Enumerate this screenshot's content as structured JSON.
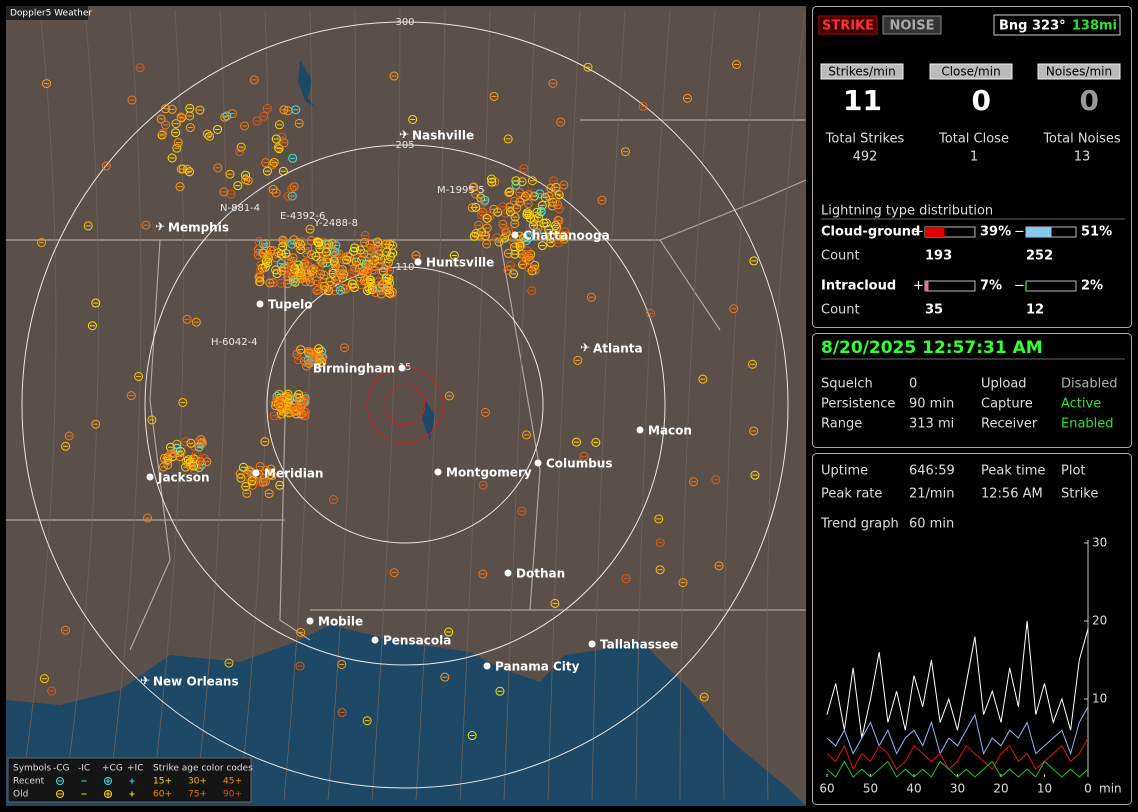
{
  "map": {
    "brand": "Doppler5 Weather",
    "rings": [
      "300",
      "205",
      "110",
      "15"
    ],
    "cities": [
      "Nashville",
      "Memphis",
      "Chattanooga",
      "Huntsville",
      "Tupelo",
      "Atlanta",
      "Birmingham",
      "Macon",
      "Columbus",
      "Montgomery",
      "Jackson",
      "Meridian",
      "Dothan",
      "Mobile",
      "Pensacola",
      "Tallahassee",
      "Panama City",
      "New Orleans"
    ],
    "storms": [
      "N-881-4",
      "E-4392-6",
      "Y-2488-8",
      "M-1995-5",
      "H-6042-4"
    ],
    "legend": {
      "headers": [
        "Symbols",
        "-CG",
        "-IC",
        "+CG",
        "+IC",
        "Strike age color codes"
      ],
      "rows": [
        {
          "label": "Recent",
          "ages": [
            "15+",
            "30+",
            "45+"
          ]
        },
        {
          "label": "Old",
          "ages": [
            "60+",
            "75+",
            "90+"
          ]
        }
      ]
    }
  },
  "header": {
    "strike_button": "STRIKE",
    "noise_button": "NOISE",
    "bearing": "Bng 323°",
    "distance": "138mi"
  },
  "rates": [
    {
      "label": "Strikes/min",
      "value": 11,
      "total_label": "Total Strikes",
      "total": 492
    },
    {
      "label": "Close/min",
      "value": 0,
      "total_label": "Total Close",
      "total": 1
    },
    {
      "label": "Noises/min",
      "value": 0,
      "total_label": "Total Noises",
      "total": 13
    }
  ],
  "distribution": {
    "title": "Lightning type distribution",
    "count_label": "Count",
    "rows": [
      {
        "label": "Cloud-ground",
        "plus": {
          "value": 39,
          "label": "39%",
          "color": "#e00000"
        },
        "minus": {
          "value": 51,
          "label": "51%",
          "color": "#88c8f0"
        },
        "plus_count": 193,
        "minus_count": 252
      },
      {
        "label": "Intracloud",
        "plus": {
          "value": 7,
          "label": "7%",
          "color": "#e070a0"
        },
        "minus": {
          "value": 2,
          "label": "2%",
          "color": "#20a040"
        },
        "plus_count": 35,
        "minus_count": 12
      }
    ]
  },
  "clock": "8/20/2025 12:57:31 AM",
  "settings": [
    {
      "cells": [
        "Squelch",
        "0",
        "Upload",
        "Disabled"
      ],
      "status_color": "#b0b0b0"
    },
    {
      "cells": [
        "Persistence",
        "90 min",
        "Capture",
        "Active"
      ],
      "status_color": "#30e030"
    },
    {
      "cells": [
        "Range",
        "313 mi",
        "Receiver",
        "Enabled"
      ],
      "status_color": "#30e030"
    }
  ],
  "stats": {
    "uptime": {
      "label": "Uptime",
      "value": "646:59"
    },
    "peak_rate": {
      "label": "Peak rate",
      "value": "21/min"
    },
    "peak_time": {
      "label": "Peak time",
      "value": "12:56 AM"
    },
    "plot": {
      "label": "Plot",
      "value": "Strike"
    },
    "trend": {
      "label": "Trend graph",
      "value": "60 min"
    }
  },
  "trend_graph": {
    "type": "line",
    "x": [
      60,
      58,
      56,
      54,
      52,
      50,
      48,
      46,
      44,
      42,
      40,
      38,
      36,
      34,
      32,
      30,
      28,
      26,
      24,
      22,
      20,
      18,
      16,
      14,
      12,
      10,
      8,
      6,
      4,
      2,
      0
    ],
    "xlim": [
      60,
      0
    ],
    "xticks": [
      60,
      50,
      40,
      30,
      20,
      10,
      0
    ],
    "x_unit": "min",
    "ylim": [
      0,
      30
    ],
    "yticks": [
      10,
      20,
      30
    ],
    "series": [
      {
        "color": "#ffffff",
        "values": [
          8,
          12,
          6,
          14,
          5,
          10,
          16,
          7,
          11,
          6,
          13,
          9,
          15,
          7,
          10,
          6,
          12,
          18,
          8,
          11,
          7,
          14,
          9,
          20,
          8,
          12,
          7,
          10,
          6,
          15,
          19
        ]
      },
      {
        "color": "#8cb8ff",
        "values": [
          5,
          4,
          6,
          3,
          5,
          7,
          4,
          6,
          3,
          5,
          6,
          4,
          7,
          3,
          5,
          4,
          6,
          8,
          3,
          5,
          4,
          6,
          5,
          7,
          3,
          4,
          5,
          6,
          3,
          7,
          9
        ]
      },
      {
        "color": "#e01010",
        "values": [
          3,
          2,
          4,
          1,
          3,
          2,
          4,
          3,
          1,
          2,
          4,
          3,
          2,
          3,
          1,
          2,
          4,
          3,
          2,
          1,
          3,
          4,
          2,
          3,
          1,
          2,
          3,
          4,
          2,
          3,
          5
        ]
      },
      {
        "color": "#20c020",
        "values": [
          1,
          0,
          2,
          0,
          1,
          0,
          1,
          2,
          0,
          1,
          0,
          1,
          0,
          2,
          1,
          0,
          1,
          0,
          1,
          2,
          0,
          1,
          0,
          1,
          0,
          2,
          1,
          0,
          1,
          0,
          1
        ]
      }
    ]
  }
}
